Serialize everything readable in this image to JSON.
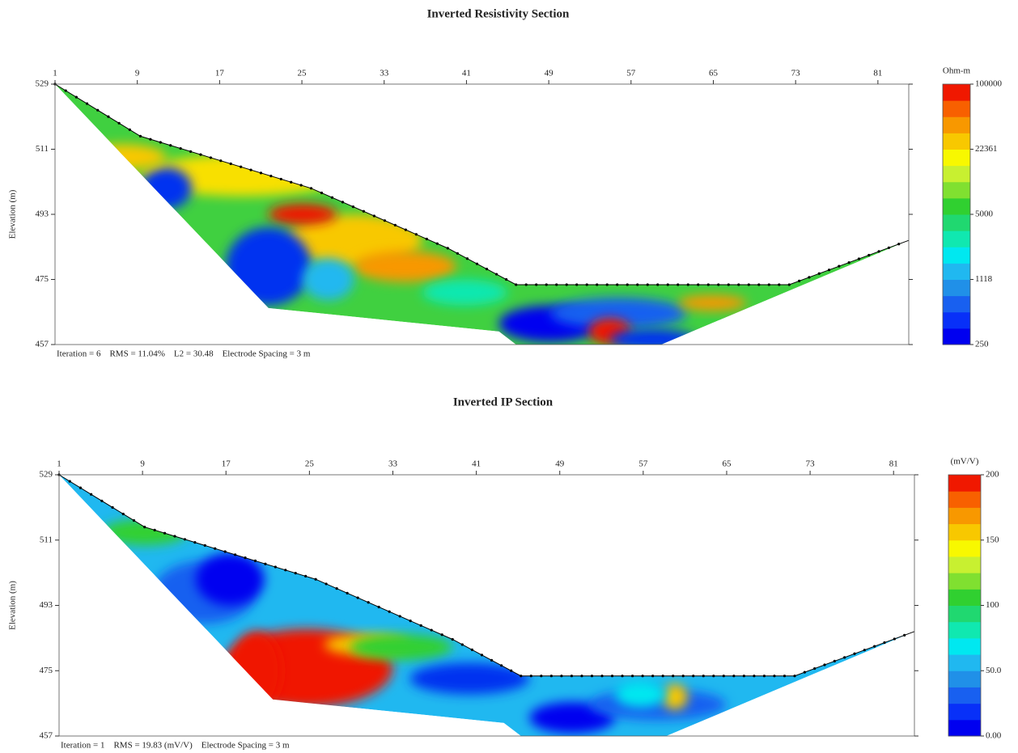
{
  "chart_data": [
    {
      "type": "section",
      "title": "Inverted Resistivity Section",
      "y_label": "Elevation (m)",
      "note": "Iteration = 6    RMS = 11.04%    L2 = 30.48    Electrode Spacing = 3 m",
      "xlim": [
        1,
        84
      ],
      "xticks": [
        1,
        9,
        17,
        25,
        33,
        41,
        49,
        57,
        65,
        73,
        81
      ],
      "ylim": [
        457,
        529
      ],
      "yticks": [
        457,
        475,
        493,
        511,
        529
      ],
      "colorbar_label": "Ohm-m",
      "colorbar_log": true,
      "clim": [
        250,
        100000
      ],
      "cticks": [
        250,
        1118,
        5000,
        22361,
        100000
      ],
      "colors": [
        "#0000f0",
        "#0830f8",
        "#1860f0",
        "#2090e8",
        "#20b8f0",
        "#00e8f0",
        "#10e8b0",
        "#20d870",
        "#30d030",
        "#80e030",
        "#c8f030",
        "#f8f800",
        "#f8c800",
        "#f89800",
        "#f86000",
        "#f01800"
      ]
    },
    {
      "type": "section",
      "title": "Inverted IP Section",
      "y_label": "Elevation (m)",
      "note": "Iteration = 1    RMS = 19.83 (mV/V)    Electrode Spacing = 3 m",
      "xlim": [
        1,
        83
      ],
      "xticks": [
        1,
        9,
        17,
        25,
        33,
        41,
        49,
        57,
        65,
        73,
        81
      ],
      "ylim": [
        457,
        529
      ],
      "yticks": [
        457,
        475,
        493,
        511,
        529
      ],
      "colorbar_label": "(mV/V)",
      "colorbar_log": false,
      "clim": [
        0,
        200
      ],
      "cticks": [
        {
          "value": 0,
          "label": "0.00"
        },
        {
          "value": 50,
          "label": "50.0"
        },
        100,
        150,
        200
      ],
      "colors": [
        "#0000f0",
        "#0830f8",
        "#1860f0",
        "#2090e8",
        "#20b8f0",
        "#00e8f0",
        "#10e8b0",
        "#20d870",
        "#30d030",
        "#80e030",
        "#c8f030",
        "#f8f800",
        "#f8c800",
        "#f89800",
        "#f86000",
        "#f01800"
      ]
    }
  ]
}
